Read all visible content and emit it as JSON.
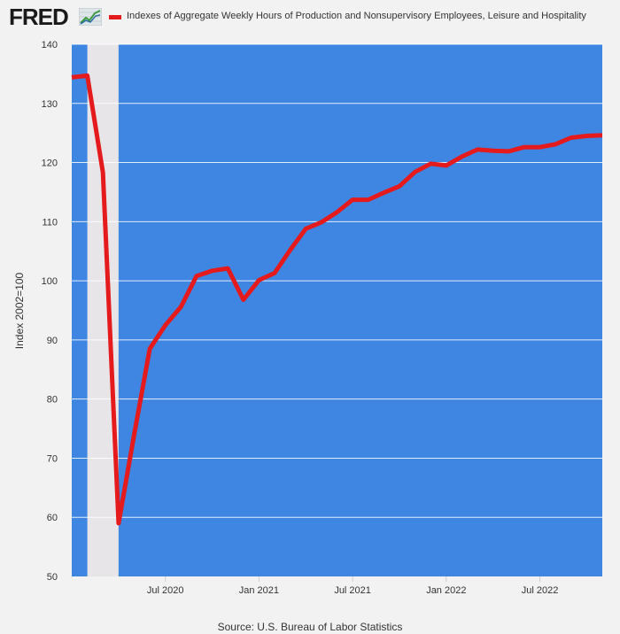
{
  "header": {
    "logo_text": "FRED",
    "legend_label": "Indexes of Aggregate Weekly Hours of Production and Nonsupervisory Employees, Leisure and Hospitality"
  },
  "source": "Source: U.S. Bureau of Labor Statistics",
  "colors": {
    "plot_background": "#3f86e3",
    "series_line": "#e41a1c",
    "recession_band": "#e8e5e8",
    "gridline": "#ffffff"
  },
  "chart_data": {
    "type": "line",
    "title": "",
    "xlabel": "",
    "ylabel": "Index 2002=100",
    "ylim": [
      50,
      140
    ],
    "yticks": [
      50,
      60,
      70,
      80,
      90,
      100,
      110,
      120,
      130,
      140
    ],
    "xlim": [
      "2020-01",
      "2022-11"
    ],
    "xticks": [
      {
        "date": "2020-07",
        "label": "Jul 2020"
      },
      {
        "date": "2021-01",
        "label": "Jan 2021"
      },
      {
        "date": "2021-07",
        "label": "Jul 2021"
      },
      {
        "date": "2022-01",
        "label": "Jan 2022"
      },
      {
        "date": "2022-07",
        "label": "Jul 2022"
      }
    ],
    "grid": true,
    "legend": "top",
    "recession": {
      "start": "2020-02",
      "end": "2020-04"
    },
    "series": [
      {
        "name": "Indexes of Aggregate Weekly Hours of Production and Nonsupervisory Employees, Leisure and Hospitality",
        "x": [
          "2020-01",
          "2020-02",
          "2020-03",
          "2020-04",
          "2020-05",
          "2020-06",
          "2020-07",
          "2020-08",
          "2020-09",
          "2020-10",
          "2020-11",
          "2020-12",
          "2021-01",
          "2021-02",
          "2021-03",
          "2021-04",
          "2021-05",
          "2021-06",
          "2021-07",
          "2021-08",
          "2021-09",
          "2021-10",
          "2021-11",
          "2021-12",
          "2022-01",
          "2022-02",
          "2022-03",
          "2022-04",
          "2022-05",
          "2022-06",
          "2022-07",
          "2022-08",
          "2022-09",
          "2022-10",
          "2022-11"
        ],
        "values": [
          134.4,
          134.7,
          118.3,
          59.0,
          74.0,
          88.5,
          92.5,
          95.6,
          100.8,
          101.7,
          102.1,
          96.8,
          100.1,
          101.3,
          105.2,
          108.8,
          109.9,
          111.6,
          113.7,
          113.7,
          114.9,
          116.0,
          118.4,
          119.8,
          119.5,
          121.0,
          122.2,
          122.0,
          121.9,
          122.6,
          122.6,
          123.1,
          124.2,
          124.5,
          124.6
        ]
      }
    ]
  }
}
